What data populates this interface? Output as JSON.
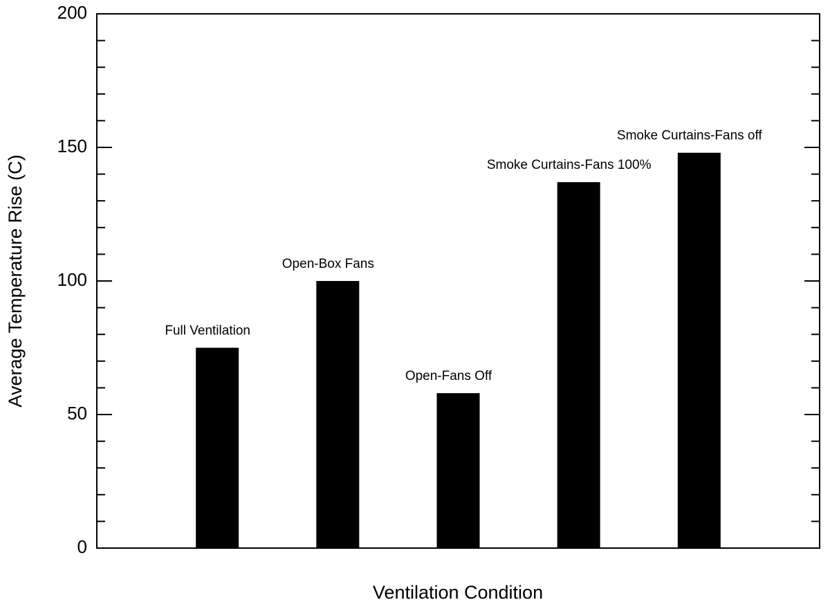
{
  "chart_data": {
    "type": "bar",
    "x_label": "Ventilation Condition",
    "y_label": "Average Temperature Rise (C)",
    "categories": [
      "Full Ventilation",
      "Open-Box Fans",
      "Open-Fans Off",
      "Smoke Curtains-Fans 100%",
      "Smoke Curtains-Fans off"
    ],
    "values": [
      75,
      100,
      58,
      137,
      148
    ],
    "color": "#000000",
    "ylim": [
      0,
      200
    ],
    "yticks": [
      0,
      50,
      100,
      150,
      200
    ],
    "yticks_minor": [
      10,
      20,
      30,
      40,
      60,
      70,
      80,
      90,
      110,
      120,
      130,
      140,
      160,
      170,
      180,
      190
    ],
    "grid": false
  }
}
